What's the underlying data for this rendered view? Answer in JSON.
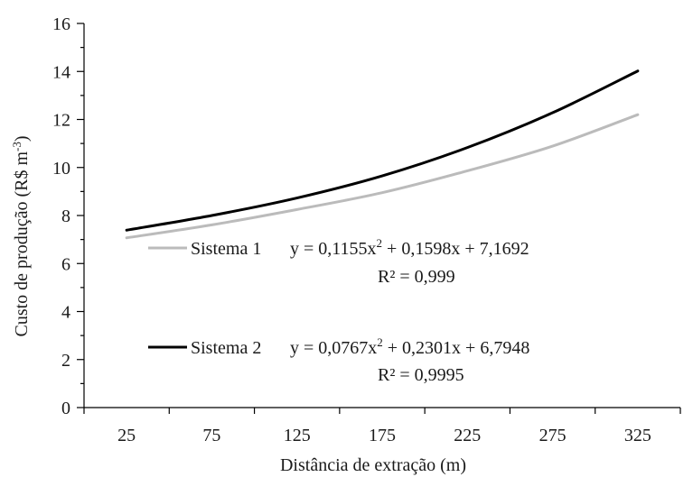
{
  "chart_data": {
    "type": "line",
    "title": "",
    "xlabel": "Distância de extração (m)",
    "ylabel_main": "Custo de produção (R$ m",
    "ylabel_sup": "-3",
    "ylabel_end": ")",
    "categories": [
      "25",
      "75",
      "125",
      "175",
      "225",
      "275",
      "325"
    ],
    "ylim": [
      0,
      16
    ],
    "yticks": [
      0,
      2,
      4,
      6,
      8,
      10,
      12,
      14,
      16
    ],
    "grid": false,
    "series": [
      {
        "name": "Sistema 1",
        "color": "#bbbbbb",
        "values": [
          7.07,
          7.61,
          8.25,
          8.95,
          9.86,
          10.89,
          12.2
        ],
        "equation_pre": "y = 0,1155x",
        "equation_sup": "2",
        "equation_post": " + 0,1598x + 7,1692",
        "r2_label": "R² = 0,999"
      },
      {
        "name": "Sistema 2",
        "color": "#000000",
        "values": [
          7.39,
          8.0,
          8.73,
          9.65,
          10.83,
          12.28,
          14.02
        ],
        "equation_pre": "y = 0,0767x",
        "equation_sup": "2",
        "equation_post": " + 0,2301x + 6,7948",
        "r2_label": "R² = 0,9995"
      }
    ]
  }
}
